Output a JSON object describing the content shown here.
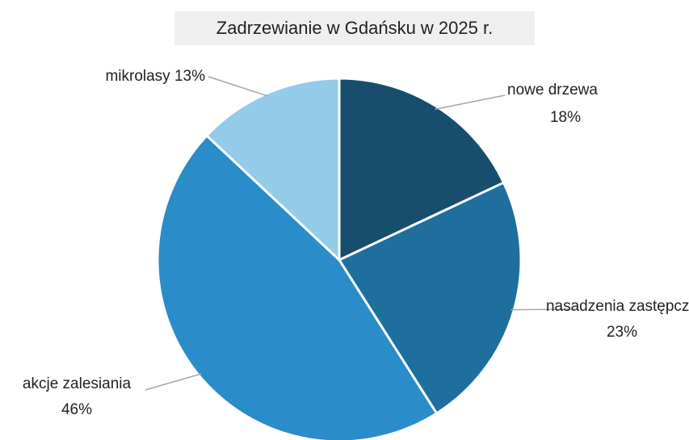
{
  "chart_data": {
    "type": "pie",
    "title": "Zadrzewianie w Gdańsku w 2025 r.",
    "categories": [
      "nowe drzewa",
      "nasadzenia zastępcze",
      "akcje zalesiania",
      "mikrolasy"
    ],
    "values": [
      18,
      23,
      46,
      13
    ],
    "value_labels": [
      "18%",
      "23%",
      "46%",
      "13%"
    ],
    "colors": [
      "#174e6e",
      "#1f6f9e",
      "#2a8cc8",
      "#94cbeb"
    ]
  }
}
